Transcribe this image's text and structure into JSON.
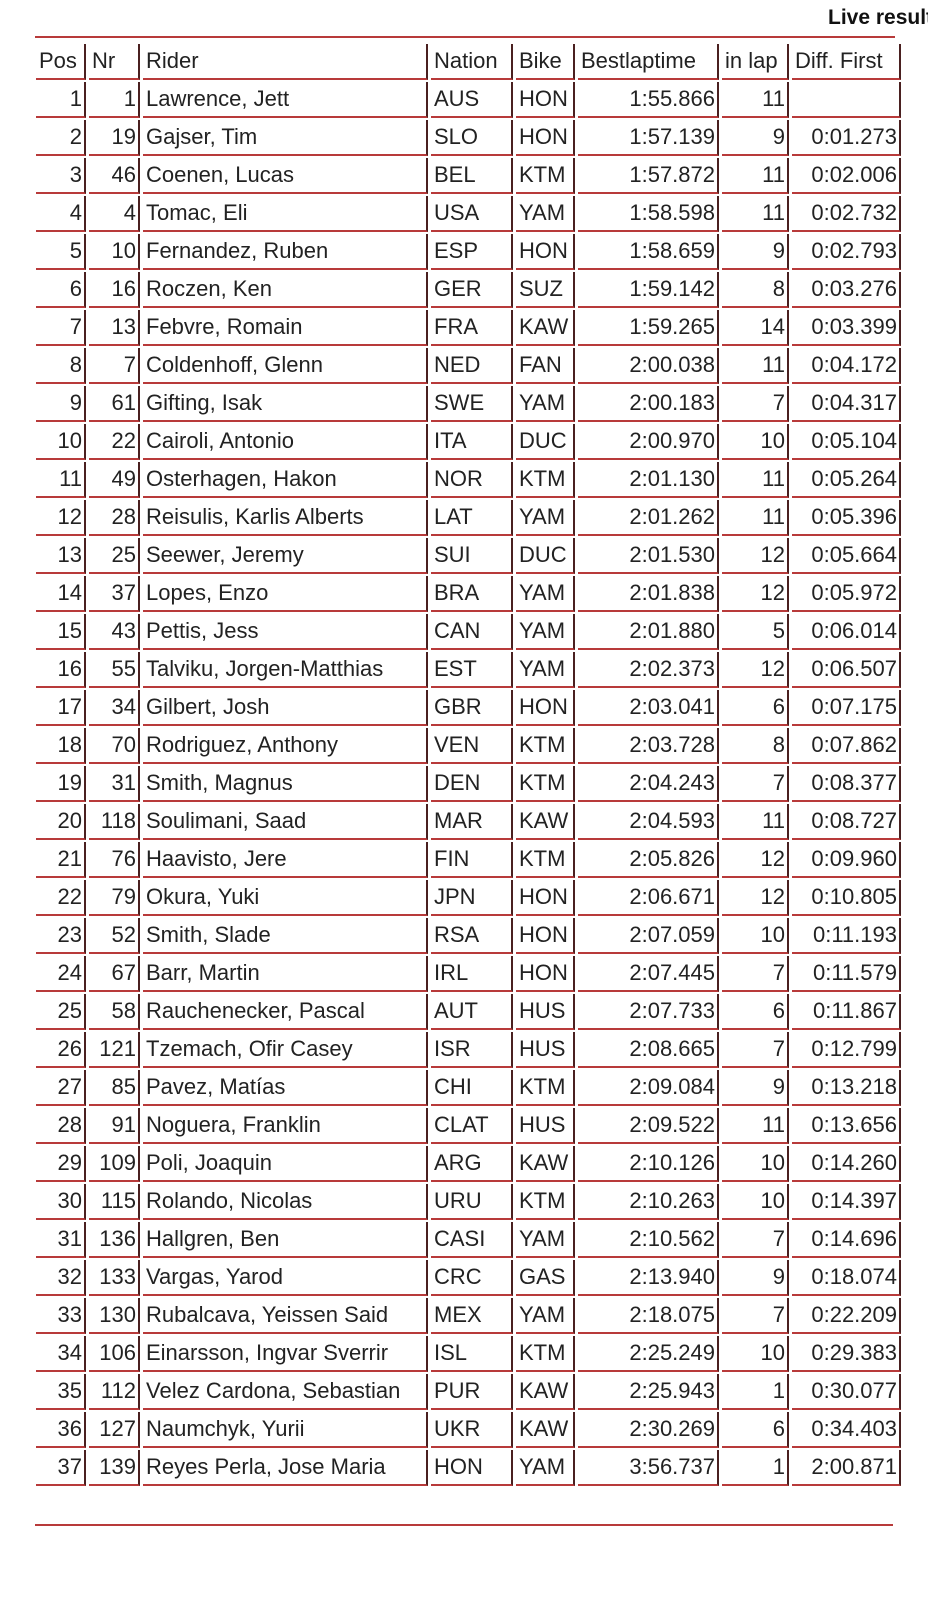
{
  "title": "Live results",
  "columns": [
    "Pos",
    "Nr",
    "Rider",
    "Nation",
    "Bike",
    "Bestlaptime",
    "in lap",
    "Diff. First"
  ],
  "accent_color": "#b83a3a",
  "rows": [
    [
      "1",
      "1",
      "Lawrence, Jett",
      "AUS",
      "HON",
      "1:55.866",
      "11",
      ""
    ],
    [
      "2",
      "19",
      "Gajser, Tim",
      "SLO",
      "HON",
      "1:57.139",
      "9",
      "0:01.273"
    ],
    [
      "3",
      "46",
      "Coenen, Lucas",
      "BEL",
      "KTM",
      "1:57.872",
      "11",
      "0:02.006"
    ],
    [
      "4",
      "4",
      "Tomac, Eli",
      "USA",
      "YAM",
      "1:58.598",
      "11",
      "0:02.732"
    ],
    [
      "5",
      "10",
      "Fernandez, Ruben",
      "ESP",
      "HON",
      "1:58.659",
      "9",
      "0:02.793"
    ],
    [
      "6",
      "16",
      "Roczen, Ken",
      "GER",
      "SUZ",
      "1:59.142",
      "8",
      "0:03.276"
    ],
    [
      "7",
      "13",
      "Febvre, Romain",
      "FRA",
      "KAW",
      "1:59.265",
      "14",
      "0:03.399"
    ],
    [
      "8",
      "7",
      "Coldenhoff, Glenn",
      "NED",
      "FAN",
      "2:00.038",
      "11",
      "0:04.172"
    ],
    [
      "9",
      "61",
      "Gifting, Isak",
      "SWE",
      "YAM",
      "2:00.183",
      "7",
      "0:04.317"
    ],
    [
      "10",
      "22",
      "Cairoli, Antonio",
      "ITA",
      "DUC",
      "2:00.970",
      "10",
      "0:05.104"
    ],
    [
      "11",
      "49",
      "Osterhagen, Hakon",
      "NOR",
      "KTM",
      "2:01.130",
      "11",
      "0:05.264"
    ],
    [
      "12",
      "28",
      "Reisulis, Karlis Alberts",
      "LAT",
      "YAM",
      "2:01.262",
      "11",
      "0:05.396"
    ],
    [
      "13",
      "25",
      "Seewer, Jeremy",
      "SUI",
      "DUC",
      "2:01.530",
      "12",
      "0:05.664"
    ],
    [
      "14",
      "37",
      "Lopes, Enzo",
      "BRA",
      "YAM",
      "2:01.838",
      "12",
      "0:05.972"
    ],
    [
      "15",
      "43",
      "Pettis, Jess",
      "CAN",
      "YAM",
      "2:01.880",
      "5",
      "0:06.014"
    ],
    [
      "16",
      "55",
      "Talviku, Jorgen-Matthias",
      "EST",
      "YAM",
      "2:02.373",
      "12",
      "0:06.507"
    ],
    [
      "17",
      "34",
      "Gilbert, Josh",
      "GBR",
      "HON",
      "2:03.041",
      "6",
      "0:07.175"
    ],
    [
      "18",
      "70",
      "Rodriguez, Anthony",
      "VEN",
      "KTM",
      "2:03.728",
      "8",
      "0:07.862"
    ],
    [
      "19",
      "31",
      "Smith, Magnus",
      "DEN",
      "KTM",
      "2:04.243",
      "7",
      "0:08.377"
    ],
    [
      "20",
      "118",
      "Soulimani, Saad",
      "MAR",
      "KAW",
      "2:04.593",
      "11",
      "0:08.727"
    ],
    [
      "21",
      "76",
      "Haavisto, Jere",
      "FIN",
      "KTM",
      "2:05.826",
      "12",
      "0:09.960"
    ],
    [
      "22",
      "79",
      "Okura, Yuki",
      "JPN",
      "HON",
      "2:06.671",
      "12",
      "0:10.805"
    ],
    [
      "23",
      "52",
      "Smith, Slade",
      "RSA",
      "HON",
      "2:07.059",
      "10",
      "0:11.193"
    ],
    [
      "24",
      "67",
      "Barr, Martin",
      "IRL",
      "HON",
      "2:07.445",
      "7",
      "0:11.579"
    ],
    [
      "25",
      "58",
      "Rauchenecker, Pascal",
      "AUT",
      "HUS",
      "2:07.733",
      "6",
      "0:11.867"
    ],
    [
      "26",
      "121",
      "Tzemach, Ofir Casey",
      "ISR",
      "HUS",
      "2:08.665",
      "7",
      "0:12.799"
    ],
    [
      "27",
      "85",
      "Pavez, Matías",
      "CHI",
      "KTM",
      "2:09.084",
      "9",
      "0:13.218"
    ],
    [
      "28",
      "91",
      "Noguera, Franklin",
      "CLAT",
      "HUS",
      "2:09.522",
      "11",
      "0:13.656"
    ],
    [
      "29",
      "109",
      "Poli, Joaquin",
      "ARG",
      "KAW",
      "2:10.126",
      "10",
      "0:14.260"
    ],
    [
      "30",
      "115",
      "Rolando, Nicolas",
      "URU",
      "KTM",
      "2:10.263",
      "10",
      "0:14.397"
    ],
    [
      "31",
      "136",
      "Hallgren, Ben",
      "CASI",
      "YAM",
      "2:10.562",
      "7",
      "0:14.696"
    ],
    [
      "32",
      "133",
      "Vargas, Yarod",
      "CRC",
      "GAS",
      "2:13.940",
      "9",
      "0:18.074"
    ],
    [
      "33",
      "130",
      "Rubalcava, Yeissen Said",
      "MEX",
      "YAM",
      "2:18.075",
      "7",
      "0:22.209"
    ],
    [
      "34",
      "106",
      "Einarsson, Ingvar Sverrir",
      "ISL",
      "KTM",
      "2:25.249",
      "10",
      "0:29.383"
    ],
    [
      "35",
      "112",
      "Velez Cardona, Sebastian",
      "PUR",
      "KAW",
      "2:25.943",
      "1",
      "0:30.077"
    ],
    [
      "36",
      "127",
      "Naumchyk, Yurii",
      "UKR",
      "KAW",
      "2:30.269",
      "6",
      "0:34.403"
    ],
    [
      "37",
      "139",
      "Reyes Perla, Jose Maria",
      "HON",
      "YAM",
      "3:56.737",
      "1",
      "2:00.871"
    ]
  ]
}
